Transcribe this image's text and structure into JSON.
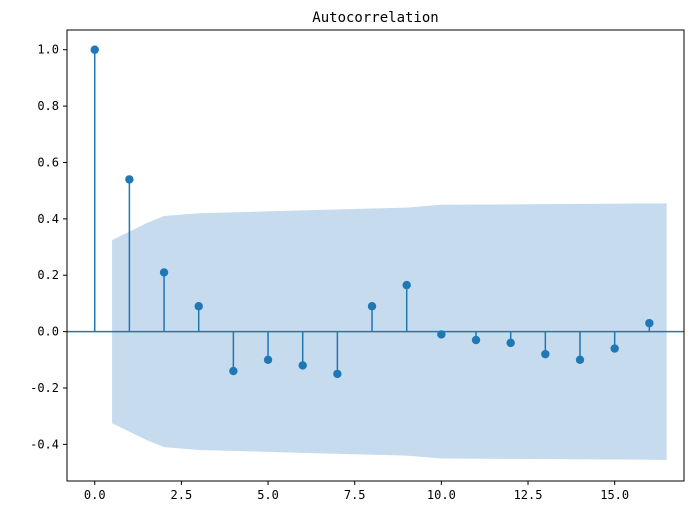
{
  "chart_data": {
    "type": "stem",
    "title": "Autocorrelation",
    "xlabel": "",
    "ylabel": "",
    "xlim": [
      -0.8,
      17.0
    ],
    "ylim": [
      -0.53,
      1.07
    ],
    "x_ticks": [
      0.0,
      2.5,
      5.0,
      7.5,
      10.0,
      12.5,
      15.0
    ],
    "x_tick_labels": [
      "0.0",
      "2.5",
      "5.0",
      "7.5",
      "10.0",
      "12.5",
      "15.0"
    ],
    "y_ticks": [
      1.0,
      0.8,
      0.6,
      0.4,
      0.2,
      0.0,
      -0.2,
      -0.4
    ],
    "y_tick_labels": [
      "1.0",
      "0.8",
      "0.6",
      "0.4",
      "0.2",
      "0.0",
      "-0.2",
      "-0.4"
    ],
    "grid": false,
    "series": [
      {
        "lags": [
          0,
          1,
          2,
          3,
          4,
          5,
          6,
          7,
          8,
          9,
          10,
          11,
          12,
          13,
          14,
          15,
          16
        ],
        "values": [
          1.0,
          0.54,
          0.21,
          0.09,
          -0.14,
          -0.1,
          -0.12,
          -0.15,
          0.09,
          0.165,
          -0.01,
          -0.03,
          -0.04,
          -0.08,
          -0.1,
          -0.06,
          0.03
        ]
      }
    ],
    "confidence_band": {
      "x": [
        0.5,
        1.5,
        2.0,
        3.0,
        6.0,
        9.0,
        10.0,
        16.5
      ],
      "upper": [
        0.325,
        0.385,
        0.41,
        0.42,
        0.43,
        0.44,
        0.45,
        0.455
      ]
    },
    "colors": {
      "stem": "#1f77b4",
      "band": "#c6dbee",
      "axes": "#000000"
    }
  }
}
